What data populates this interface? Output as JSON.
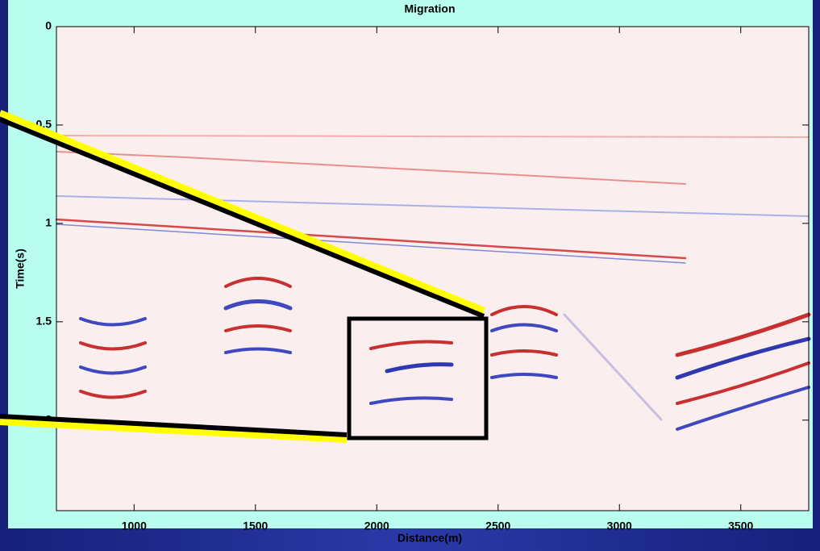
{
  "chart_data": {
    "type": "image",
    "title": "Migration",
    "xlabel": "Distance(m)",
    "ylabel": "Time(s)",
    "xlim": [
      680,
      3780
    ],
    "xticks": [
      1000,
      1500,
      2000,
      2500,
      3000,
      3500
    ],
    "ylim": [
      0,
      2.46
    ],
    "yticks": [
      0,
      0.5,
      1,
      1.5,
      2
    ],
    "y_reversed": true
  }
}
